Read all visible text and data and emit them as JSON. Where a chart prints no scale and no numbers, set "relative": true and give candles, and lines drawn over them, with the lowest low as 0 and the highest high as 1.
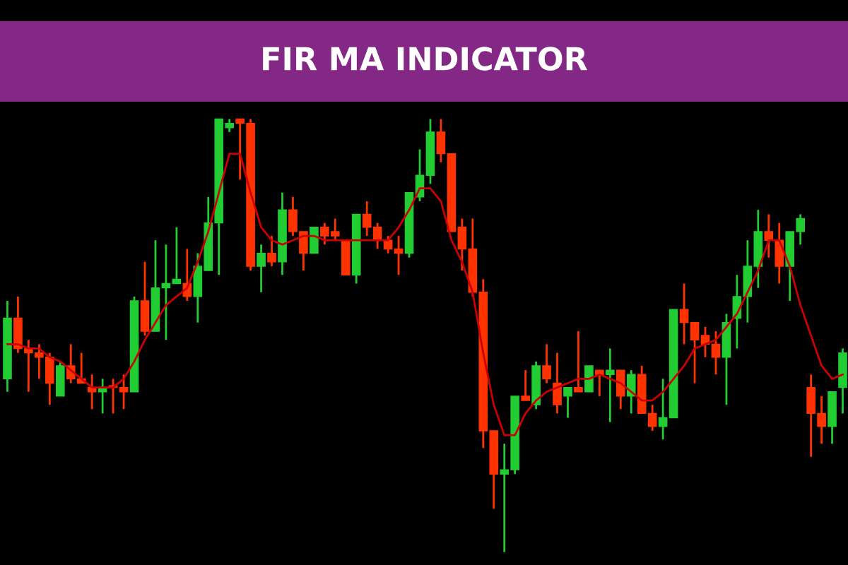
{
  "chart_data": {
    "type": "candlestick",
    "title": "FIR MA INDICATOR",
    "relative": true,
    "grid": false,
    "legend": false,
    "categories": [
      null,
      null,
      null,
      null,
      null,
      null,
      null,
      null,
      null,
      null,
      null,
      null,
      null,
      null,
      null,
      null,
      null,
      null,
      null,
      null,
      null,
      null,
      null,
      null,
      null,
      null,
      null,
      null,
      null,
      null,
      null,
      null,
      null,
      null,
      null,
      null,
      null,
      null,
      null,
      null,
      null,
      null,
      null,
      null,
      null,
      null,
      null,
      null,
      null,
      null,
      null,
      null,
      null,
      null,
      null,
      null,
      null,
      null,
      null,
      null,
      null,
      null,
      null,
      null,
      null,
      null,
      null,
      null,
      null,
      null,
      null,
      null,
      null,
      null,
      null,
      null,
      null,
      null,
      null,
      null
    ],
    "ohlc": [
      [
        0.4,
        0.58,
        0.37,
        0.54
      ],
      [
        0.54,
        0.59,
        0.46,
        0.47
      ],
      [
        0.47,
        0.49,
        0.37,
        0.46
      ],
      [
        0.46,
        0.48,
        0.4,
        0.45
      ],
      [
        0.45,
        0.46,
        0.34,
        0.39
      ],
      [
        0.36,
        0.44,
        0.36,
        0.43
      ],
      [
        0.43,
        0.48,
        0.39,
        0.4
      ],
      [
        0.4,
        0.46,
        0.39,
        0.39
      ],
      [
        0.38,
        0.41,
        0.33,
        0.37
      ],
      [
        0.37,
        0.4,
        0.32,
        0.38
      ],
      [
        0.38,
        0.4,
        0.32,
        0.38
      ],
      [
        0.38,
        0.41,
        0.33,
        0.37
      ],
      [
        0.37,
        0.59,
        0.37,
        0.58
      ],
      [
        0.58,
        0.67,
        0.5,
        0.51
      ],
      [
        0.51,
        0.72,
        0.51,
        0.61
      ],
      [
        0.61,
        0.71,
        0.49,
        0.62
      ],
      [
        0.62,
        0.75,
        0.62,
        0.63
      ],
      [
        0.62,
        0.7,
        0.58,
        0.59
      ],
      [
        0.59,
        0.69,
        0.53,
        0.66
      ],
      [
        0.65,
        0.82,
        0.65,
        0.76
      ],
      [
        0.76,
        1.0,
        0.64,
        1.0
      ],
      [
        0.98,
        1.0,
        0.97,
        0.99
      ],
      [
        1.0,
        1.0,
        0.86,
        0.99
      ],
      [
        0.99,
        1.0,
        0.65,
        0.66
      ],
      [
        0.66,
        0.71,
        0.6,
        0.69
      ],
      [
        0.69,
        0.73,
        0.66,
        0.67
      ],
      [
        0.67,
        0.83,
        0.64,
        0.79
      ],
      [
        0.79,
        0.82,
        0.73,
        0.74
      ],
      [
        0.74,
        0.74,
        0.65,
        0.69
      ],
      [
        0.69,
        0.75,
        0.69,
        0.75
      ],
      [
        0.75,
        0.76,
        0.71,
        0.73
      ],
      [
        0.74,
        0.77,
        0.72,
        0.73
      ],
      [
        0.72,
        0.72,
        0.64,
        0.64
      ],
      [
        0.64,
        0.78,
        0.62,
        0.78
      ],
      [
        0.78,
        0.81,
        0.73,
        0.75
      ],
      [
        0.75,
        0.76,
        0.7,
        0.72
      ],
      [
        0.72,
        0.73,
        0.69,
        0.7
      ],
      [
        0.7,
        0.73,
        0.64,
        0.69
      ],
      [
        0.69,
        0.83,
        0.68,
        0.83
      ],
      [
        0.82,
        0.93,
        0.81,
        0.87
      ],
      [
        0.87,
        1.0,
        0.85,
        0.97
      ],
      [
        0.97,
        1.0,
        0.9,
        0.92
      ],
      [
        0.92,
        0.92,
        0.74,
        0.74
      ],
      [
        0.75,
        0.77,
        0.65,
        0.7
      ],
      [
        0.7,
        0.77,
        0.59,
        0.6
      ],
      [
        0.6,
        0.63,
        0.24,
        0.28
      ],
      [
        0.28,
        0.28,
        0.1,
        0.18
      ],
      [
        0.18,
        0.25,
        0.0,
        0.19
      ],
      [
        0.19,
        0.36,
        0.18,
        0.36
      ],
      [
        0.36,
        0.42,
        0.35,
        0.35
      ],
      [
        0.34,
        0.44,
        0.33,
        0.43
      ],
      [
        0.43,
        0.48,
        0.39,
        0.4
      ],
      [
        0.39,
        0.46,
        0.32,
        0.34
      ],
      [
        0.36,
        0.38,
        0.31,
        0.38
      ],
      [
        0.38,
        0.51,
        0.37,
        0.37
      ],
      [
        0.37,
        0.43,
        0.37,
        0.43
      ],
      [
        0.42,
        0.42,
        0.36,
        0.41
      ],
      [
        0.41,
        0.47,
        0.3,
        0.42
      ],
      [
        0.42,
        0.42,
        0.33,
        0.36
      ],
      [
        0.36,
        0.42,
        0.32,
        0.41
      ],
      [
        0.41,
        0.43,
        0.32,
        0.32
      ],
      [
        0.32,
        0.34,
        0.28,
        0.29
      ],
      [
        0.29,
        0.4,
        0.26,
        0.31
      ],
      [
        0.31,
        0.56,
        0.31,
        0.56
      ],
      [
        0.56,
        0.62,
        0.48,
        0.53
      ],
      [
        0.53,
        0.53,
        0.39,
        0.49
      ],
      [
        0.5,
        0.52,
        0.45,
        0.48
      ],
      [
        0.48,
        0.51,
        0.41,
        0.45
      ],
      [
        0.45,
        0.55,
        0.34,
        0.53
      ],
      [
        0.54,
        0.64,
        0.47,
        0.59
      ],
      [
        0.59,
        0.72,
        0.53,
        0.66
      ],
      [
        0.66,
        0.79,
        0.61,
        0.74
      ],
      [
        0.74,
        0.78,
        0.68,
        0.72
      ],
      [
        0.72,
        0.76,
        0.62,
        0.66
      ],
      [
        0.66,
        0.74,
        0.58,
        0.74
      ],
      [
        0.74,
        0.78,
        0.71,
        0.77
      ],
      [
        0.38,
        0.41,
        0.22,
        0.32
      ],
      [
        0.32,
        0.36,
        0.25,
        0.29
      ],
      [
        0.29,
        0.37,
        0.25,
        0.37
      ],
      [
        0.38,
        0.47,
        0.32,
        0.46
      ]
    ],
    "colors": [
      "#22cc33",
      "#ff3300",
      "#ff3300",
      "#ff3300",
      "#ff3300",
      "#22cc33",
      "#ff3300",
      "#ff3300",
      "#ff3300",
      "#22cc33",
      "#ff3300",
      "#ff3300",
      "#22cc33",
      "#ff3300",
      "#22cc33",
      "#22cc33",
      "#22cc33",
      "#ff3300",
      "#22cc33",
      "#22cc33",
      "#22cc33",
      "#22cc33",
      "#ff3300",
      "#ff3300",
      "#22cc33",
      "#ff3300",
      "#22cc33",
      "#ff3300",
      "#ff3300",
      "#22cc33",
      "#ff3300",
      "#ff3300",
      "#ff3300",
      "#22cc33",
      "#ff3300",
      "#ff3300",
      "#ff3300",
      "#ff3300",
      "#22cc33",
      "#22cc33",
      "#22cc33",
      "#ff3300",
      "#ff3300",
      "#ff3300",
      "#ff3300",
      "#ff3300",
      "#ff3300",
      "#22cc33",
      "#22cc33",
      "#ff3300",
      "#22cc33",
      "#ff3300",
      "#ff3300",
      "#22cc33",
      "#ff3300",
      "#22cc33",
      "#ff3300",
      "#22cc33",
      "#ff3300",
      "#22cc33",
      "#ff3300",
      "#ff3300",
      "#22cc33",
      "#22cc33",
      "#ff3300",
      "#ff3300",
      "#ff3300",
      "#ff3300",
      "#22cc33",
      "#22cc33",
      "#22cc33",
      "#22cc33",
      "#ff3300",
      "#ff3300",
      "#22cc33",
      "#22cc33",
      "#ff3300",
      "#ff3300",
      "#22cc33",
      "#22cc33"
    ],
    "series": [
      {
        "type": "line",
        "color": "#cc0000",
        "values": [
          0.48,
          0.48,
          0.47,
          0.47,
          0.45,
          0.44,
          0.42,
          0.4,
          0.38,
          0.38,
          0.38,
          0.4,
          0.44,
          0.49,
          0.53,
          0.57,
          0.59,
          0.61,
          0.67,
          0.74,
          0.83,
          0.92,
          0.92,
          0.83,
          0.75,
          0.72,
          0.71,
          0.72,
          0.73,
          0.73,
          0.72,
          0.72,
          0.72,
          0.72,
          0.72,
          0.72,
          0.72,
          0.75,
          0.79,
          0.84,
          0.84,
          0.81,
          0.72,
          0.67,
          0.6,
          0.46,
          0.34,
          0.27,
          0.27,
          0.32,
          0.35,
          0.37,
          0.38,
          0.39,
          0.4,
          0.4,
          0.41,
          0.4,
          0.39,
          0.37,
          0.35,
          0.35,
          0.37,
          0.4,
          0.43,
          0.47,
          0.48,
          0.49,
          0.52,
          0.55,
          0.6,
          0.65,
          0.72,
          0.72,
          0.66,
          0.57,
          0.5,
          0.43,
          0.4,
          0.41
        ]
      }
    ]
  }
}
